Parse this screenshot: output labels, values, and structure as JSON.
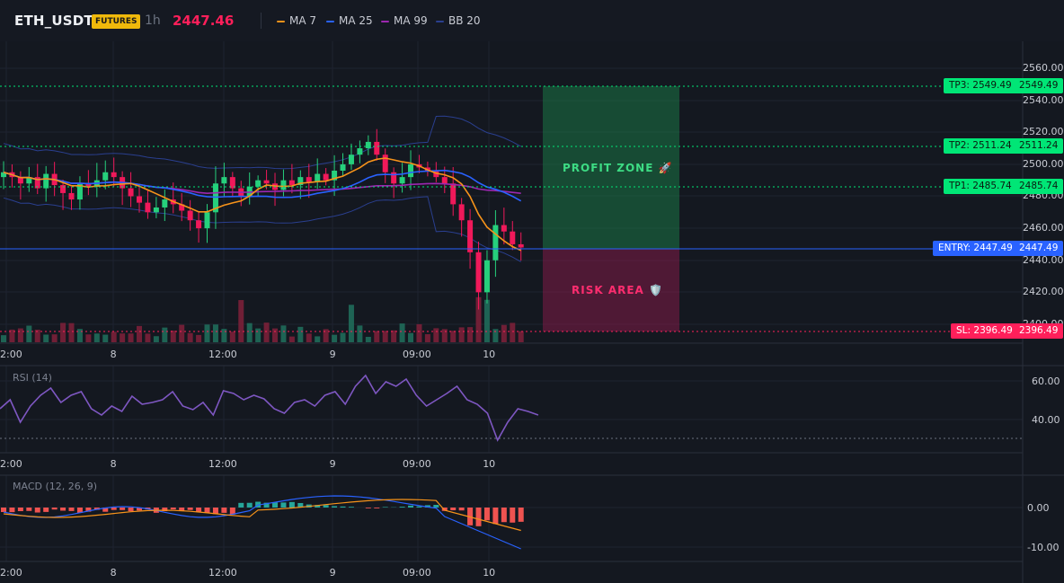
{
  "header": {
    "symbol": "ETH_USDT",
    "badge": "FUTURES",
    "timeframe": "1h",
    "last_price": "2447.46",
    "indicators": [
      {
        "label": "MA 7",
        "color": "#f7931a"
      },
      {
        "label": "MA 25",
        "color": "#2962ff"
      },
      {
        "label": "MA 99",
        "color": "#9c27b0"
      },
      {
        "label": "BB 20",
        "color": "#2a3f8f"
      }
    ]
  },
  "price_axis": {
    "ticks": [
      "2560.00",
      "2540.00",
      "2520.00",
      "2500.00",
      "2480.00",
      "2460.00",
      "2440.00",
      "2420.00",
      "2400.00"
    ]
  },
  "time_axis": {
    "ticks": [
      "2:00",
      "8",
      "12:00",
      "9",
      "09:00",
      "10"
    ]
  },
  "levels": {
    "tp3": {
      "tag": "TP3: 2549.49",
      "axis": "2549.49",
      "color": "#00e676"
    },
    "tp2": {
      "tag": "TP2: 2511.24",
      "axis": "2511.24",
      "color": "#00e676"
    },
    "tp1": {
      "tag": "TP1: 2485.74",
      "axis": "2485.74",
      "color": "#00e676"
    },
    "entry": {
      "tag": "ENTRY: 2447.49",
      "axis": "2447.49",
      "color": "#2962ff"
    },
    "sl": {
      "tag": "SL: 2396.49",
      "axis": "2396.49",
      "color": "#ff1f5a"
    }
  },
  "zones": {
    "profit": "PROFIT ZONE 🚀",
    "risk": "RISK AREA 🛡️"
  },
  "rsi": {
    "title": "RSI (14)",
    "ticks": [
      "60.00",
      "40.00"
    ],
    "color": "#7e57c2"
  },
  "macd": {
    "title": "MACD (12, 26, 9)",
    "ticks": [
      "0.00",
      "-10.00"
    ]
  },
  "colors": {
    "up": "#00e676",
    "down": "#ff1f5a",
    "background": "#141820"
  }
}
